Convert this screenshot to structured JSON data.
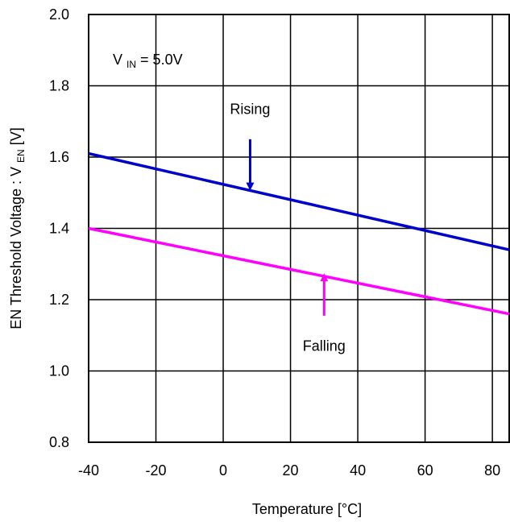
{
  "chart_data": {
    "type": "line",
    "xlabel": "Temperature [°C]",
    "ylabel": {
      "main": "EN Threshold Voltage : V",
      "sub": "EN",
      "tail": " [V]"
    },
    "xlim": [
      -40,
      85
    ],
    "ylim": [
      0.8,
      2.0
    ],
    "x_ticks": [
      -40,
      -20,
      0,
      20,
      40,
      60,
      80
    ],
    "y_ticks": [
      0.8,
      1.0,
      1.2,
      1.4,
      1.6,
      1.8,
      2.0
    ],
    "x_tick_labels": [
      "-40",
      "-20",
      "0",
      "20",
      "40",
      "60",
      "80"
    ],
    "y_tick_labels": [
      "0.8",
      "1.0",
      "1.2",
      "1.4",
      "1.6",
      "1.8",
      "2.0"
    ],
    "grid": true,
    "annotation_condition": {
      "symbol": "V",
      "sub": "IN",
      "rest": " = 5.0V"
    },
    "series": [
      {
        "name": "Rising",
        "color": "#0000cc",
        "x": [
          -40,
          85
        ],
        "y": [
          1.61,
          1.34
        ],
        "label_at": [
          8,
          1.735
        ],
        "arrow_from": [
          8,
          1.65
        ],
        "arrow_to": [
          8,
          1.515
        ]
      },
      {
        "name": "Falling",
        "color": "#ff00ff",
        "x": [
          -40,
          85
        ],
        "y": [
          1.4,
          1.16
        ],
        "label_at": [
          30,
          1.07
        ],
        "arrow_from": [
          30,
          1.155
        ],
        "arrow_to": [
          30,
          1.265
        ]
      }
    ]
  }
}
